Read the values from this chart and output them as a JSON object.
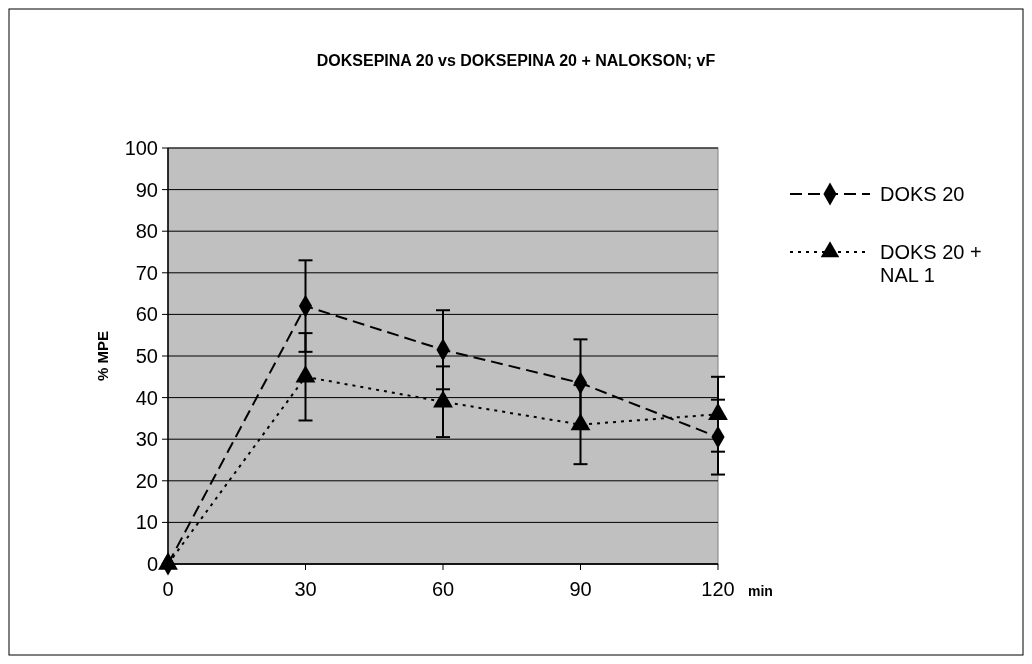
{
  "chart_data": {
    "type": "line",
    "title": "DOKSEPINA 20 vs DOKSEPINA 20 + NALOKSON; vF",
    "xlabel": "min",
    "ylabel": "% MPE",
    "x": [
      0,
      30,
      60,
      90,
      120
    ],
    "xlim": [
      0,
      120
    ],
    "xticks": [
      0,
      30,
      60,
      90,
      120
    ],
    "ylim": [
      0,
      100
    ],
    "yticks": [
      0,
      10,
      20,
      30,
      40,
      50,
      60,
      70,
      80,
      90,
      100
    ],
    "grid": "y",
    "legend": "right",
    "series": [
      {
        "name": "DOKS 20",
        "color": "#000000",
        "marker": "diamond",
        "line_style": "dashed",
        "values": [
          0,
          62,
          51.5,
          43.5,
          30.5
        ],
        "errors": [
          null,
          11,
          9.5,
          10.5,
          9
        ]
      },
      {
        "name": "DOKS 20 + NAL 1",
        "color": "#000000",
        "marker": "triangle",
        "line_style": "dotted",
        "values": [
          0,
          45,
          39,
          33.5,
          36
        ],
        "errors": [
          null,
          10.5,
          8.5,
          9.5,
          9
        ]
      }
    ]
  }
}
